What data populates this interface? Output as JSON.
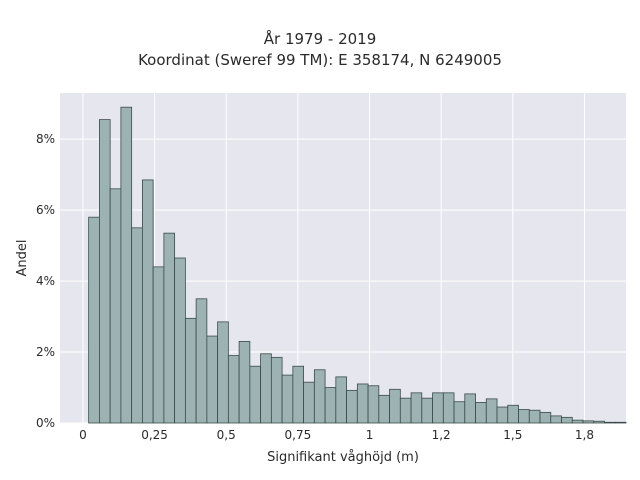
{
  "chart_data": {
    "type": "bar",
    "title": "År 1979 - 2019",
    "subtitle": "Koordinat (Sweref 99 TM): E 358174, N 6249005",
    "xlabel": "Signifikant våghöjd (m)",
    "ylabel": "Andel",
    "xlim": [
      -0.08,
      1.895
    ],
    "ylim": [
      0,
      9.3
    ],
    "x_ticks": [
      0,
      0.25,
      0.5,
      0.75,
      1,
      1.25,
      1.5,
      1.75
    ],
    "x_tick_labels": [
      "0",
      "0,25",
      "0,5",
      "0,75",
      "1",
      "1,2",
      "1,5",
      "1,8"
    ],
    "y_ticks": [
      0,
      2,
      4,
      6,
      8
    ],
    "y_tick_labels": [
      "0%",
      "2%",
      "4%",
      "6%",
      "8%"
    ],
    "bin_start": 0.02,
    "bin_width": 0.0375,
    "values": [
      5.8,
      8.55,
      6.6,
      8.9,
      5.5,
      6.85,
      4.4,
      5.35,
      4.65,
      2.95,
      3.5,
      2.45,
      2.85,
      1.9,
      2.3,
      1.6,
      1.95,
      1.85,
      1.35,
      1.6,
      1.15,
      1.5,
      1.0,
      1.3,
      0.92,
      1.1,
      1.05,
      0.78,
      0.95,
      0.7,
      0.85,
      0.7,
      0.85,
      0.85,
      0.6,
      0.82,
      0.58,
      0.68,
      0.45,
      0.5,
      0.38,
      0.36,
      0.3,
      0.2,
      0.16,
      0.08,
      0.06,
      0.05,
      0.02,
      0.02
    ],
    "grid": true,
    "colors": {
      "plot_background": "#e6e6ef",
      "grid": "#ffffff",
      "bar_fill": "#9db3b3",
      "bar_stroke": "#3a4a4a"
    }
  }
}
